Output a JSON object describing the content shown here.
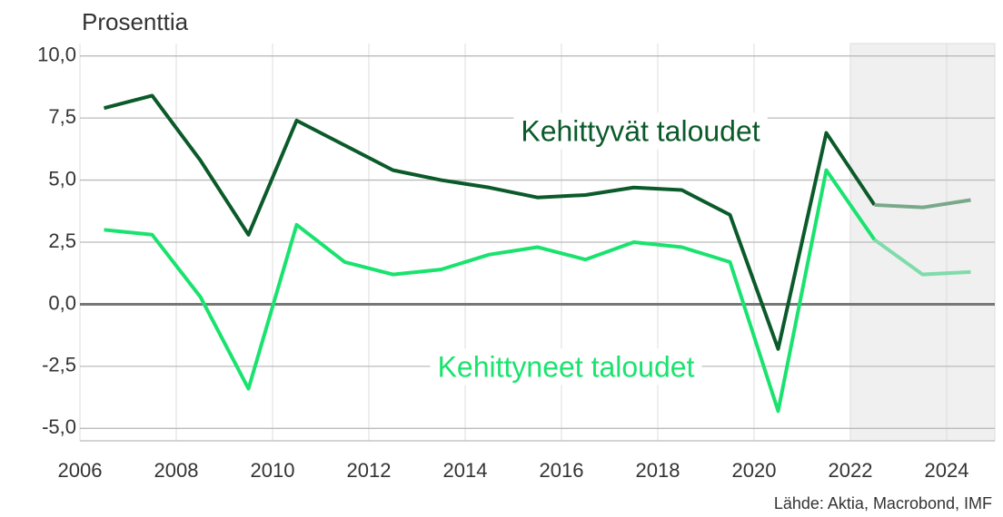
{
  "chart_data": {
    "type": "line",
    "y_label": "Prosenttia",
    "source": "Lähde: Aktia, Macrobond, IMF",
    "x": [
      2006.5,
      2007.5,
      2008.5,
      2009.5,
      2010.5,
      2011.5,
      2012.5,
      2013.5,
      2014.5,
      2015.5,
      2016.5,
      2017.5,
      2018.5,
      2019.5,
      2020.5,
      2021.5,
      2022.5,
      2023.5,
      2024.5
    ],
    "series": [
      {
        "name": "Kehittyvät taloudet",
        "color": "#0b5a2a",
        "forecast_color": "#7aa88a",
        "values": [
          7.9,
          8.4,
          5.8,
          2.8,
          7.4,
          6.4,
          5.4,
          5.0,
          4.7,
          4.3,
          4.4,
          4.7,
          4.6,
          3.6,
          -1.8,
          6.9,
          4.0,
          3.9,
          4.2
        ]
      },
      {
        "name": "Kehittyneet taloudet",
        "color": "#19e36e",
        "forecast_color": "#7fdcaa",
        "values": [
          3.0,
          2.8,
          0.3,
          -3.4,
          3.2,
          1.7,
          1.2,
          1.4,
          2.0,
          2.3,
          1.8,
          2.5,
          2.3,
          1.7,
          -4.3,
          5.4,
          2.6,
          1.2,
          1.3
        ]
      }
    ],
    "forecast_xlim": [
      2022,
      2025
    ],
    "xlim": [
      2006,
      2025
    ],
    "xticks": [
      2006,
      2008,
      2010,
      2012,
      2014,
      2016,
      2018,
      2020,
      2022,
      2024
    ],
    "ylim": [
      -5.5,
      10.5
    ],
    "yticks": [
      {
        "value": 10,
        "label": "10,0"
      },
      {
        "value": 7.5,
        "label": "7,5"
      },
      {
        "value": 5,
        "label": "5,0"
      },
      {
        "value": 2.5,
        "label": "2,5"
      },
      {
        "value": 0,
        "label": "0,0"
      },
      {
        "value": -2.5,
        "label": "-2,5"
      },
      {
        "value": -5,
        "label": "-5,0"
      }
    ],
    "grid": true
  }
}
